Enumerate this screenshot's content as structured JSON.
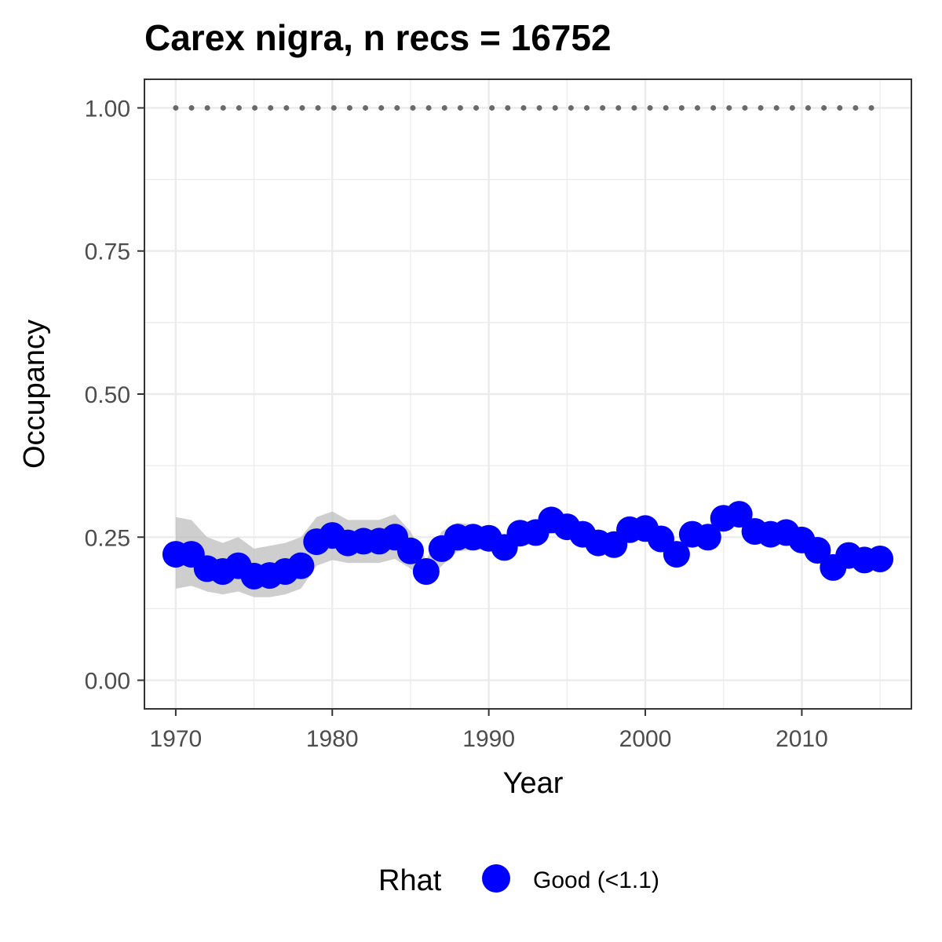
{
  "chart_data": {
    "type": "line",
    "title": "Carex nigra, n recs = 16752",
    "xlabel": "Year",
    "ylabel": "Occupancy",
    "xlim": [
      1968,
      2017
    ],
    "ylim": [
      -0.05,
      1.05
    ],
    "x_ticks": [
      1970,
      1980,
      1990,
      2000,
      2010
    ],
    "x_tick_labels": [
      "1970",
      "1980",
      "1990",
      "2000",
      "2010"
    ],
    "y_ticks": [
      0,
      0.25,
      0.5,
      0.75,
      1.0
    ],
    "y_tick_labels": [
      "0.00",
      "0.25",
      "0.50",
      "0.75",
      "1.00"
    ],
    "grid": true,
    "legend": {
      "title": "Rhat",
      "position": "bottom",
      "entries": [
        {
          "label": "Good (<1.1)",
          "color": "#0000ff"
        }
      ]
    },
    "colors": {
      "points": "#0000ff",
      "ribbon": "#bebebe",
      "reference": "#696969",
      "grid": "#ebebeb",
      "panel_border": "#333333"
    },
    "x": [
      1970,
      1971,
      1972,
      1973,
      1974,
      1975,
      1976,
      1977,
      1978,
      1979,
      1980,
      1981,
      1982,
      1983,
      1984,
      1985,
      1986,
      1987,
      1988,
      1989,
      1990,
      1991,
      1992,
      1993,
      1994,
      1995,
      1996,
      1997,
      1998,
      1999,
      2000,
      2001,
      2002,
      2003,
      2004,
      2005,
      2006,
      2007,
      2008,
      2009,
      2010,
      2011,
      2012,
      2013,
      2014,
      2015
    ],
    "series": [
      {
        "name": "Good (<1.1)",
        "values": [
          0.22,
          0.22,
          0.195,
          0.19,
          0.2,
          0.182,
          0.183,
          0.19,
          0.2,
          0.242,
          0.253,
          0.24,
          0.243,
          0.243,
          0.25,
          0.226,
          0.19,
          0.23,
          0.25,
          0.25,
          0.248,
          0.232,
          0.257,
          0.258,
          0.28,
          0.268,
          0.255,
          0.24,
          0.237,
          0.263,
          0.265,
          0.247,
          0.22,
          0.255,
          0.25,
          0.283,
          0.29,
          0.26,
          0.255,
          0.258,
          0.245,
          0.227,
          0.197,
          0.218,
          0.21,
          0.212
        ],
        "lower": [
          0.16,
          0.165,
          0.155,
          0.15,
          0.155,
          0.145,
          0.145,
          0.15,
          0.16,
          0.2,
          0.21,
          0.205,
          0.205,
          0.205,
          0.212,
          0.195,
          0.17,
          0.2,
          0.225,
          0.228,
          0.228,
          0.212,
          0.235,
          0.238,
          0.258,
          0.248,
          0.238,
          0.224,
          0.22,
          0.245,
          0.247,
          0.23,
          0.205,
          0.238,
          0.233,
          0.265,
          0.272,
          0.243,
          0.238,
          0.24,
          0.228,
          0.21,
          0.18,
          0.2,
          0.193,
          0.195
        ],
        "upper": [
          0.285,
          0.28,
          0.25,
          0.24,
          0.25,
          0.23,
          0.235,
          0.24,
          0.25,
          0.285,
          0.295,
          0.28,
          0.28,
          0.28,
          0.29,
          0.26,
          0.21,
          0.26,
          0.275,
          0.272,
          0.268,
          0.252,
          0.278,
          0.278,
          0.302,
          0.288,
          0.272,
          0.256,
          0.254,
          0.281,
          0.283,
          0.264,
          0.235,
          0.272,
          0.267,
          0.301,
          0.308,
          0.277,
          0.272,
          0.276,
          0.262,
          0.244,
          0.214,
          0.236,
          0.227,
          0.229
        ]
      }
    ],
    "reference_line": {
      "y": 1.0,
      "style": "dotted"
    }
  }
}
